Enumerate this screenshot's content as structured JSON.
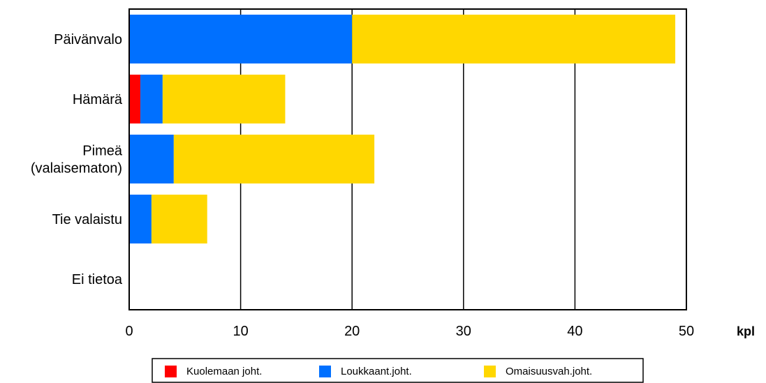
{
  "chart_data": {
    "type": "bar",
    "orientation": "horizontal",
    "stacked": true,
    "title": "",
    "xlabel": "kpl",
    "ylabel": "",
    "categories": [
      "Päivänvalo",
      "Hämärä",
      "Pimeä\n(valaisematon)",
      "Tie valaistu",
      "Ei tietoa"
    ],
    "series": [
      {
        "name": "Kuolemaan joht.",
        "color": "#ff0000",
        "values": [
          0,
          1,
          0,
          0,
          0
        ]
      },
      {
        "name": "Loukkaant.joht.",
        "color": "#0070ff",
        "values": [
          20,
          2,
          4,
          2,
          0
        ]
      },
      {
        "name": "Omaisuusvah.joht.",
        "color": "#ffd700",
        "values": [
          29,
          11,
          18,
          5,
          0
        ]
      }
    ],
    "xlim": [
      0,
      50
    ],
    "xticks": [
      0,
      10,
      20,
      30,
      40,
      50
    ],
    "grid": true,
    "legend": "bottom"
  }
}
